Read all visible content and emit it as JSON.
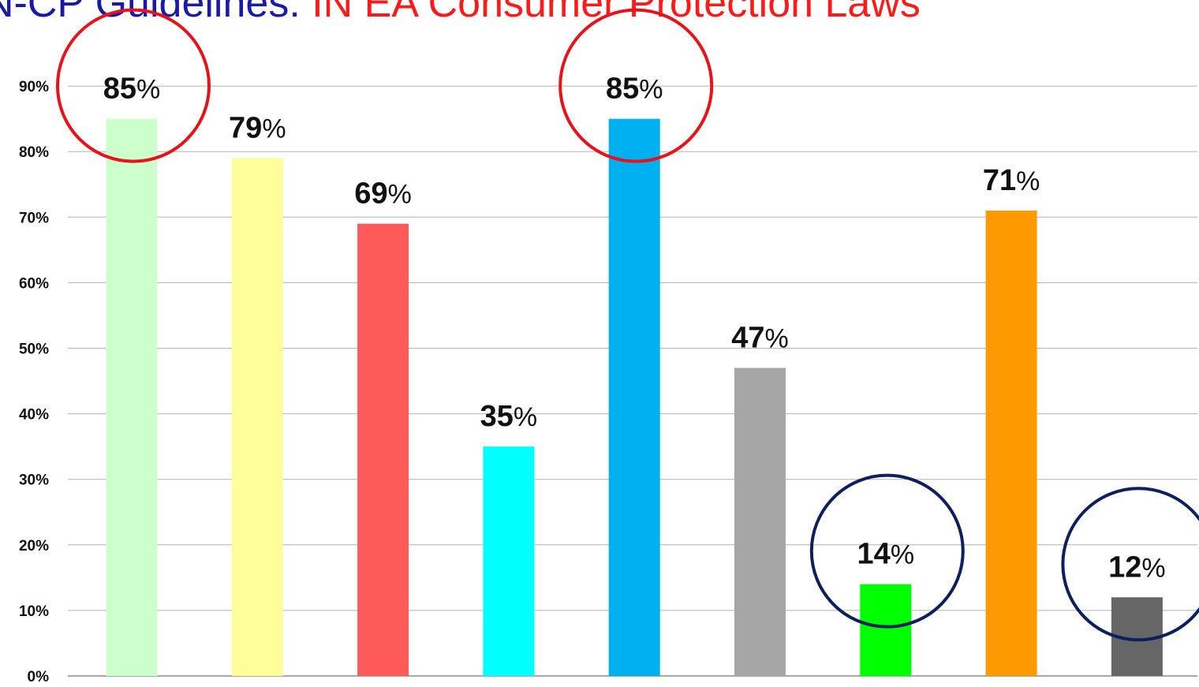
{
  "title_part1": "N-CP Guidelines:",
  "title_part2": "IN EA Consumer Protection Laws",
  "chart_data": {
    "type": "bar",
    "categories": [
      "",
      "",
      "",
      "",
      "",
      "",
      "",
      "",
      ""
    ],
    "values": [
      85,
      79,
      69,
      35,
      85,
      47,
      14,
      71,
      12
    ],
    "data_labels": [
      "85",
      "79",
      "69",
      "35",
      "85",
      "47",
      "14",
      "71",
      "12"
    ],
    "label_suffix": "%",
    "colors": [
      "#ccffcc",
      "#ffff99",
      "#ff5a5a",
      "#00ffff",
      "#00b0f0",
      "#a6a6a6",
      "#00ff00",
      "#ff9900",
      "#666666"
    ],
    "yticks": [
      "0%",
      "10%",
      "20%",
      "30%",
      "40%",
      "50%",
      "60%",
      "70%",
      "80%",
      "90%"
    ],
    "ylim": [
      0,
      90
    ],
    "grid": true,
    "highlighted_red": [
      0,
      4
    ],
    "highlighted_navy": [
      6,
      8
    ],
    "highlight_colors": {
      "red": "#e8121a",
      "navy": "#0d1f5c"
    }
  }
}
